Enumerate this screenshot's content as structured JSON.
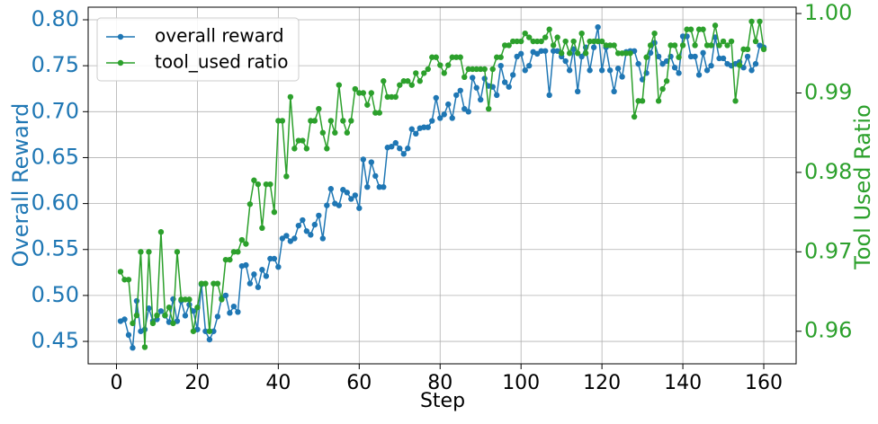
{
  "chart_data": {
    "type": "line",
    "xlabel": "Step",
    "ylabel": "Overall Reward",
    "y2label": "Tool Used Ratio",
    "x": [
      1,
      2,
      3,
      4,
      5,
      6,
      7,
      8,
      9,
      10,
      11,
      12,
      13,
      14,
      15,
      16,
      17,
      18,
      19,
      20,
      21,
      22,
      23,
      24,
      25,
      26,
      27,
      28,
      29,
      30,
      31,
      32,
      33,
      34,
      35,
      36,
      37,
      38,
      39,
      40,
      41,
      42,
      43,
      44,
      45,
      46,
      47,
      48,
      49,
      50,
      51,
      52,
      53,
      54,
      55,
      56,
      57,
      58,
      59,
      60,
      61,
      62,
      63,
      64,
      65,
      66,
      67,
      68,
      69,
      70,
      71,
      72,
      73,
      74,
      75,
      76,
      77,
      78,
      79,
      80,
      81,
      82,
      83,
      84,
      85,
      86,
      87,
      88,
      89,
      90,
      91,
      92,
      93,
      94,
      95,
      96,
      97,
      98,
      99,
      100,
      101,
      102,
      103,
      104,
      105,
      106,
      107,
      108,
      109,
      110,
      111,
      112,
      113,
      114,
      115,
      116,
      117,
      118,
      119,
      120,
      121,
      122,
      123,
      124,
      125,
      126,
      127,
      128,
      129,
      130,
      131,
      132,
      133,
      134,
      135,
      136,
      137,
      138,
      139,
      140,
      141,
      142,
      143,
      144,
      145,
      146,
      147,
      148,
      149,
      150,
      151,
      152,
      153,
      154,
      155,
      156,
      157,
      158,
      159,
      160
    ],
    "series": [
      {
        "name": "overall reward",
        "color": "#1f77b4",
        "axis": "y",
        "values": [
          0.472,
          0.474,
          0.457,
          0.443,
          0.494,
          0.461,
          0.463,
          0.486,
          0.472,
          0.474,
          0.483,
          0.478,
          0.471,
          0.496,
          0.472,
          0.494,
          0.478,
          0.49,
          0.483,
          0.463,
          0.512,
          0.461,
          0.452,
          0.461,
          0.477,
          0.497,
          0.5,
          0.481,
          0.488,
          0.482,
          0.532,
          0.533,
          0.513,
          0.523,
          0.509,
          0.528,
          0.521,
          0.54,
          0.54,
          0.531,
          0.562,
          0.565,
          0.559,
          0.562,
          0.576,
          0.582,
          0.57,
          0.566,
          0.577,
          0.587,
          0.562,
          0.598,
          0.616,
          0.6,
          0.598,
          0.615,
          0.612,
          0.605,
          0.609,
          0.595,
          0.648,
          0.618,
          0.645,
          0.63,
          0.618,
          0.618,
          0.661,
          0.662,
          0.666,
          0.66,
          0.654,
          0.66,
          0.681,
          0.676,
          0.682,
          0.683,
          0.683,
          0.69,
          0.715,
          0.693,
          0.697,
          0.708,
          0.693,
          0.718,
          0.723,
          0.703,
          0.7,
          0.737,
          0.726,
          0.713,
          0.736,
          0.728,
          0.727,
          0.718,
          0.75,
          0.732,
          0.727,
          0.74,
          0.76,
          0.763,
          0.745,
          0.75,
          0.765,
          0.763,
          0.766,
          0.766,
          0.718,
          0.766,
          0.766,
          0.76,
          0.755,
          0.745,
          0.768,
          0.722,
          0.76,
          0.77,
          0.745,
          0.77,
          0.792,
          0.745,
          0.77,
          0.745,
          0.722,
          0.747,
          0.738,
          0.765,
          0.766,
          0.766,
          0.752,
          0.735,
          0.742,
          0.764,
          0.775,
          0.76,
          0.752,
          0.755,
          0.76,
          0.748,
          0.742,
          0.782,
          0.782,
          0.76,
          0.76,
          0.74,
          0.764,
          0.745,
          0.75,
          0.781,
          0.758,
          0.758,
          0.752,
          0.75,
          0.752,
          0.754,
          0.748,
          0.76,
          0.745,
          0.752,
          0.772,
          0.77
        ]
      },
      {
        "name": "tool_used ratio",
        "color": "#2ca02c",
        "axis": "y2",
        "values": [
          0.9675,
          0.9665,
          0.9665,
          0.961,
          0.962,
          0.97,
          0.958,
          0.97,
          0.961,
          0.962,
          0.9725,
          0.962,
          0.963,
          0.961,
          0.97,
          0.964,
          0.964,
          0.964,
          0.96,
          0.963,
          0.966,
          0.966,
          0.96,
          0.966,
          0.966,
          0.964,
          0.969,
          0.969,
          0.97,
          0.97,
          0.9715,
          0.971,
          0.976,
          0.979,
          0.9785,
          0.973,
          0.9785,
          0.9785,
          0.975,
          0.9865,
          0.9865,
          0.9795,
          0.9895,
          0.983,
          0.984,
          0.984,
          0.983,
          0.9865,
          0.9865,
          0.988,
          0.985,
          0.983,
          0.9865,
          0.985,
          0.991,
          0.9865,
          0.985,
          0.9865,
          0.9905,
          0.99,
          0.99,
          0.9885,
          0.99,
          0.9875,
          0.9875,
          0.9915,
          0.9895,
          0.9895,
          0.9895,
          0.991,
          0.9915,
          0.9915,
          0.991,
          0.9925,
          0.9915,
          0.9925,
          0.993,
          0.9945,
          0.9945,
          0.9935,
          0.9925,
          0.9935,
          0.9945,
          0.9945,
          0.9945,
          0.992,
          0.993,
          0.993,
          0.993,
          0.993,
          0.993,
          0.988,
          0.993,
          0.9945,
          0.9945,
          0.996,
          0.996,
          0.9965,
          0.9965,
          0.9965,
          0.9975,
          0.997,
          0.9965,
          0.9965,
          0.9965,
          0.997,
          0.998,
          0.996,
          0.997,
          0.995,
          0.9965,
          0.995,
          0.9965,
          0.995,
          0.9975,
          0.995,
          0.9965,
          0.9965,
          0.9965,
          0.9965,
          0.996,
          0.996,
          0.996,
          0.995,
          0.995,
          0.995,
          0.995,
          0.987,
          0.989,
          0.989,
          0.9945,
          0.996,
          0.9975,
          0.989,
          0.9905,
          0.9915,
          0.996,
          0.996,
          0.9945,
          0.996,
          0.998,
          0.998,
          0.996,
          0.998,
          0.998,
          0.996,
          0.996,
          0.9985,
          0.996,
          0.9965,
          0.996,
          0.9965,
          0.989,
          0.9935,
          0.9955,
          0.9955,
          0.999,
          0.9965,
          0.999,
          0.9955
        ]
      }
    ],
    "xlim": [
      -7,
      168
    ],
    "xticks": [
      0,
      20,
      40,
      60,
      80,
      100,
      120,
      140,
      160
    ],
    "ylim": [
      0.4256,
      0.8137
    ],
    "yticks": [
      0.45,
      {
        "value": 0.5,
        "label": "0.50"
      },
      0.55,
      {
        "value": 0.6,
        "label": "0.60"
      },
      0.65,
      {
        "value": 0.7,
        "label": "0.70"
      },
      0.75,
      {
        "value": 0.8,
        "label": "0.80"
      }
    ],
    "y2lim": [
      0.9559,
      1.0008
    ],
    "y2ticks": [
      0.96,
      0.97,
      0.98,
      0.99,
      {
        "value": 1,
        "label": "1.00"
      }
    ],
    "grid": true,
    "legend": "upper-left"
  }
}
